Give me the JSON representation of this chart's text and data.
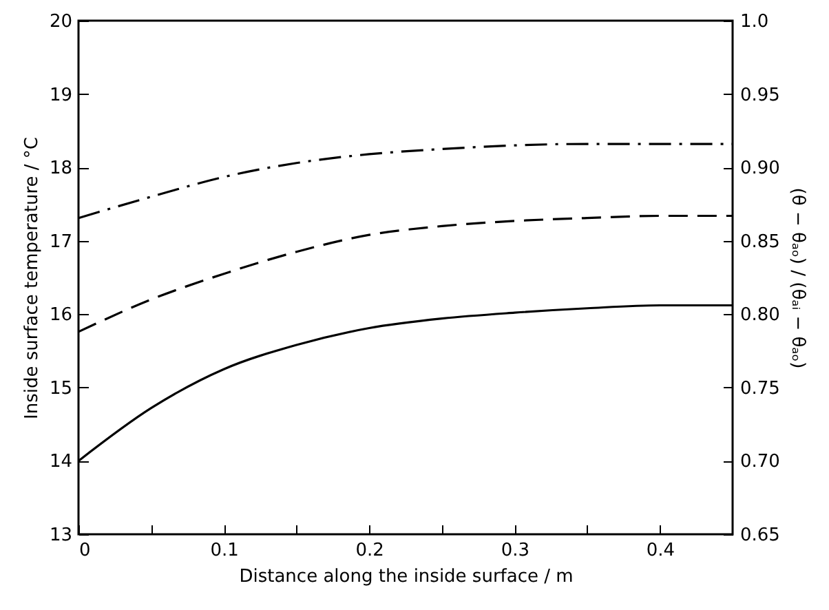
{
  "chart_data": {
    "type": "line",
    "xlabel": "Distance along the inside surface / m",
    "ylabel": "Inside surface temperature / °C",
    "y2label": "(θ − θₐₒ) / (θₐᵢ − θₐₒ)",
    "x": [
      0,
      0.05,
      0.1,
      0.15,
      0.2,
      0.25,
      0.3,
      0.35,
      0.4,
      0.45
    ],
    "series": [
      {
        "color": "#000000",
        "line_style": "solid",
        "values": [
          14.0,
          14.72,
          15.25,
          15.58,
          15.81,
          15.94,
          16.02,
          16.08,
          16.12,
          16.12
        ]
      },
      {
        "color": "#000000",
        "line_style": "dashed",
        "values": [
          15.76,
          16.2,
          16.55,
          16.85,
          17.08,
          17.2,
          17.27,
          17.31,
          17.34,
          17.34
        ]
      },
      {
        "color": "#000000",
        "line_style": "dashdot",
        "values": [
          17.31,
          17.6,
          17.87,
          18.06,
          18.18,
          18.25,
          18.3,
          18.32,
          18.32,
          18.32
        ]
      }
    ],
    "xlim": [
      0,
      0.45
    ],
    "xticks": [
      0,
      {
        "value": 0.05,
        "label": null
      },
      0.1,
      {
        "value": 0.15,
        "label": null
      },
      0.2,
      {
        "value": 0.25,
        "label": null
      },
      0.3,
      {
        "value": 0.35,
        "label": null
      },
      0.4
    ],
    "ylim": [
      13,
      20
    ],
    "yticks": [
      13,
      14,
      15,
      16,
      17,
      18,
      19,
      20
    ],
    "y2lim": [
      0.65,
      1.0
    ],
    "y2ticks": [
      0.65,
      {
        "value": 0.7,
        "label": "0.70"
      },
      0.75,
      {
        "value": 0.8,
        "label": "0.80"
      },
      0.85,
      {
        "value": 0.9,
        "label": "0.90"
      },
      0.95,
      {
        "value": 1.0,
        "label": "1.0"
      }
    ],
    "grid": false
  }
}
